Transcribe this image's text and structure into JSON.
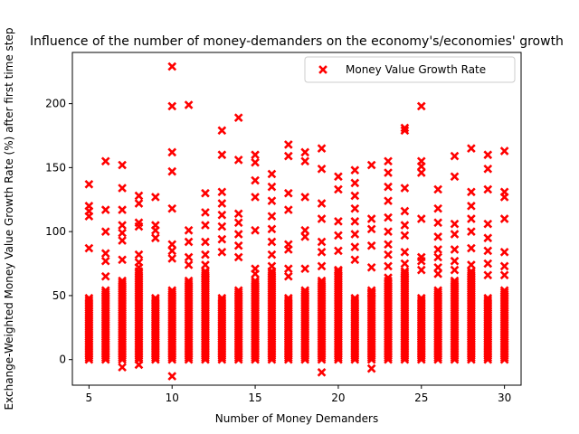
{
  "chart_data": {
    "type": "scatter",
    "title": "Influence of the number of money-demanders on the economy's/economies' growth",
    "xlabel": "Number of Money Demanders",
    "ylabel": "Exchange-Weighted Money Value Growth Rate (%) after first time step",
    "xlim": [
      4,
      31
    ],
    "ylim": [
      -20,
      240
    ],
    "xticks": [
      5,
      10,
      15,
      20,
      25,
      30
    ],
    "yticks": [
      0,
      50,
      100,
      150,
      200
    ],
    "grid": false,
    "legend_position": "top-right",
    "marker_color": "#ff0000",
    "series": [
      {
        "name": "Money Value Growth Rate",
        "color": "#ff0000",
        "marker": "x",
        "columns": [
          {
            "x": 5,
            "extras": [
              137,
              120,
              116,
              112,
              87
            ]
          },
          {
            "x": 6,
            "extras": [
              155,
              117,
              100,
              83,
              77,
              65
            ]
          },
          {
            "x": 7,
            "extras": [
              152,
              134,
              117,
              105,
              99,
              93,
              78,
              -6
            ]
          },
          {
            "x": 8,
            "extras": [
              128,
              122,
              107,
              104,
              82,
              76,
              72,
              -4
            ]
          },
          {
            "x": 9,
            "extras": [
              127,
              105,
              101,
              95
            ]
          },
          {
            "x": 10,
            "extras": [
              229,
              198,
              162,
              147,
              118,
              90,
              85,
              79,
              -13
            ]
          },
          {
            "x": 11,
            "extras": [
              199,
              101,
              92,
              80,
              74
            ]
          },
          {
            "x": 12,
            "extras": [
              130,
              115,
              105,
              92,
              82,
              74,
              63
            ]
          },
          {
            "x": 13,
            "extras": [
              179,
              160,
              131,
              122,
              113,
              104,
              94,
              84
            ]
          },
          {
            "x": 14,
            "extras": [
              189,
              156,
              114,
              107,
              98,
              89,
              80
            ]
          },
          {
            "x": 15,
            "extras": [
              160,
              154,
              140,
              127,
              101,
              71,
              67
            ]
          },
          {
            "x": 16,
            "extras": [
              145,
              135,
              124,
              112,
              102,
              92,
              82,
              73
            ]
          },
          {
            "x": 17,
            "extras": [
              168,
              159,
              130,
              117,
              90,
              86,
              71,
              65
            ]
          },
          {
            "x": 18,
            "extras": [
              162,
              155,
              127,
              101,
              96,
              71
            ]
          },
          {
            "x": 19,
            "extras": [
              165,
              149,
              122,
              110,
              92,
              84,
              73,
              -10
            ]
          },
          {
            "x": 20,
            "extras": [
              143,
              133,
              108,
              97,
              85,
              70
            ]
          },
          {
            "x": 21,
            "extras": [
              148,
              138,
              128,
              118,
              108,
              98,
              88,
              78
            ]
          },
          {
            "x": 22,
            "extras": [
              152,
              110,
              102,
              89,
              72,
              52,
              -7
            ]
          },
          {
            "x": 23,
            "extras": [
              155,
              146,
              135,
              124,
              111,
              100,
              90,
              82,
              73,
              64
            ]
          },
          {
            "x": 24,
            "extras": [
              181,
              179,
              134,
              116,
              105,
              97,
              84,
              75,
              63
            ]
          },
          {
            "x": 25,
            "extras": [
              198,
              155,
              151,
              146,
              110,
              80,
              77,
              70
            ]
          },
          {
            "x": 26,
            "extras": [
              133,
              118,
              107,
              96,
              86,
              80,
              72,
              67
            ]
          },
          {
            "x": 27,
            "extras": [
              159,
              143,
              106,
              98,
              86,
              77,
              70
            ]
          },
          {
            "x": 28,
            "extras": [
              165,
              131,
              120,
              110,
              100,
              87,
              74
            ]
          },
          {
            "x": 29,
            "extras": [
              160,
              149,
              133,
              106,
              95,
              85,
              75,
              66
            ]
          },
          {
            "x": 30,
            "extras": [
              163,
              131,
              127,
              110,
              84,
              73,
              66
            ]
          }
        ]
      }
    ]
  }
}
